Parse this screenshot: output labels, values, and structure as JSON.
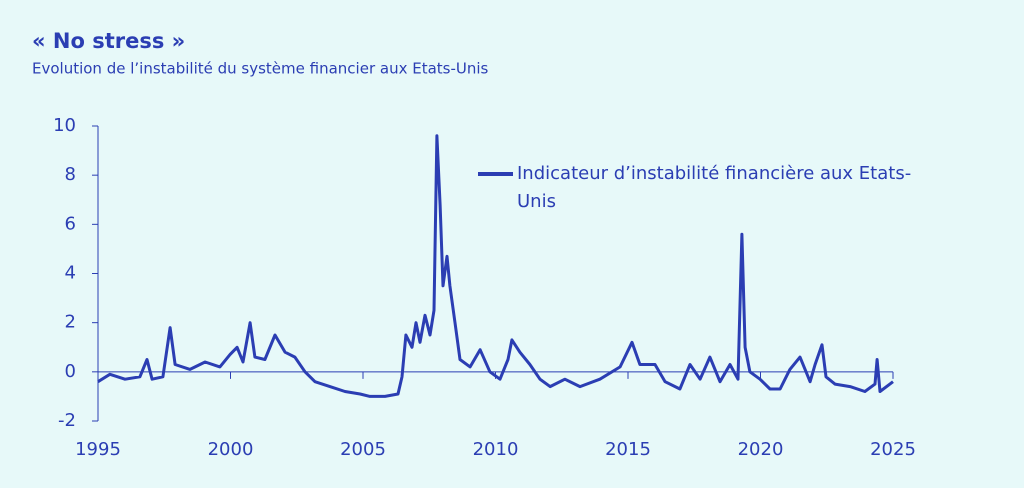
{
  "chart_data": {
    "type": "line",
    "title": "« No stress »",
    "subtitle": "Evolution de l’instabilité du système financier aux Etats-Unis",
    "x": [
      1995.0,
      1995.45,
      1996.02,
      1996.58,
      1996.85,
      1997.04,
      1997.45,
      1997.72,
      1997.91,
      1998.47,
      1999.04,
      1999.6,
      1999.98,
      2000.25,
      2000.47,
      2000.74,
      2000.92,
      2001.3,
      2001.68,
      2002.06,
      2002.43,
      2002.81,
      2003.19,
      2003.75,
      2004.32,
      2004.89,
      2005.26,
      2005.83,
      2006.32,
      2006.47,
      2006.62,
      2006.85,
      2007.0,
      2007.15,
      2007.34,
      2007.53,
      2007.68,
      2007.79,
      2007.91,
      2008.02,
      2008.17,
      2008.28,
      2008.47,
      2008.66,
      2009.04,
      2009.42,
      2009.79,
      2010.17,
      2010.47,
      2010.62,
      2010.92,
      2011.3,
      2011.68,
      2012.06,
      2012.62,
      2013.19,
      2013.94,
      2014.7,
      2015.15,
      2015.45,
      2016.02,
      2016.4,
      2016.96,
      2017.34,
      2017.72,
      2018.09,
      2018.47,
      2018.85,
      2019.15,
      2019.3,
      2019.42,
      2019.6,
      2019.98,
      2020.36,
      2020.74,
      2021.11,
      2021.49,
      2021.87,
      2022.06,
      2022.32,
      2022.47,
      2022.81,
      2023.38,
      2023.94,
      2024.32,
      2024.4,
      2024.51,
      2025.0
    ],
    "series": [
      {
        "name": "Indicateur d’instabilité financière aux Etats-Unis",
        "color": "#2b3eb3",
        "values": [
          -0.4,
          -0.1,
          -0.3,
          -0.2,
          0.5,
          -0.3,
          -0.2,
          1.8,
          0.3,
          0.1,
          0.4,
          0.2,
          0.7,
          1.0,
          0.4,
          2.0,
          0.6,
          0.5,
          1.5,
          0.8,
          0.6,
          0.0,
          -0.4,
          -0.6,
          -0.8,
          -0.9,
          -1.0,
          -1.0,
          -0.9,
          -0.2,
          1.5,
          1.0,
          2.0,
          1.2,
          2.3,
          1.5,
          2.5,
          9.6,
          6.8,
          3.5,
          4.7,
          3.5,
          2.0,
          0.5,
          0.2,
          0.9,
          0.0,
          -0.3,
          0.5,
          1.3,
          0.8,
          0.3,
          -0.3,
          -0.6,
          -0.3,
          -0.6,
          -0.3,
          0.2,
          1.2,
          0.3,
          0.3,
          -0.4,
          -0.7,
          0.3,
          -0.3,
          0.6,
          -0.4,
          0.3,
          -0.3,
          5.6,
          1.0,
          0.0,
          -0.3,
          -0.7,
          -0.7,
          0.1,
          0.6,
          -0.4,
          0.3,
          1.1,
          -0.2,
          -0.5,
          -0.6,
          -0.8,
          -0.5,
          0.5,
          -0.8,
          -0.4
        ]
      }
    ],
    "xlim": [
      1995,
      2025
    ],
    "xticks": [
      1995,
      2000,
      2005,
      2010,
      2015,
      2020,
      2025
    ],
    "ylim": [
      -2,
      10
    ],
    "yticks": [
      -2,
      0,
      2,
      4,
      6,
      8,
      10
    ],
    "grid": false
  }
}
